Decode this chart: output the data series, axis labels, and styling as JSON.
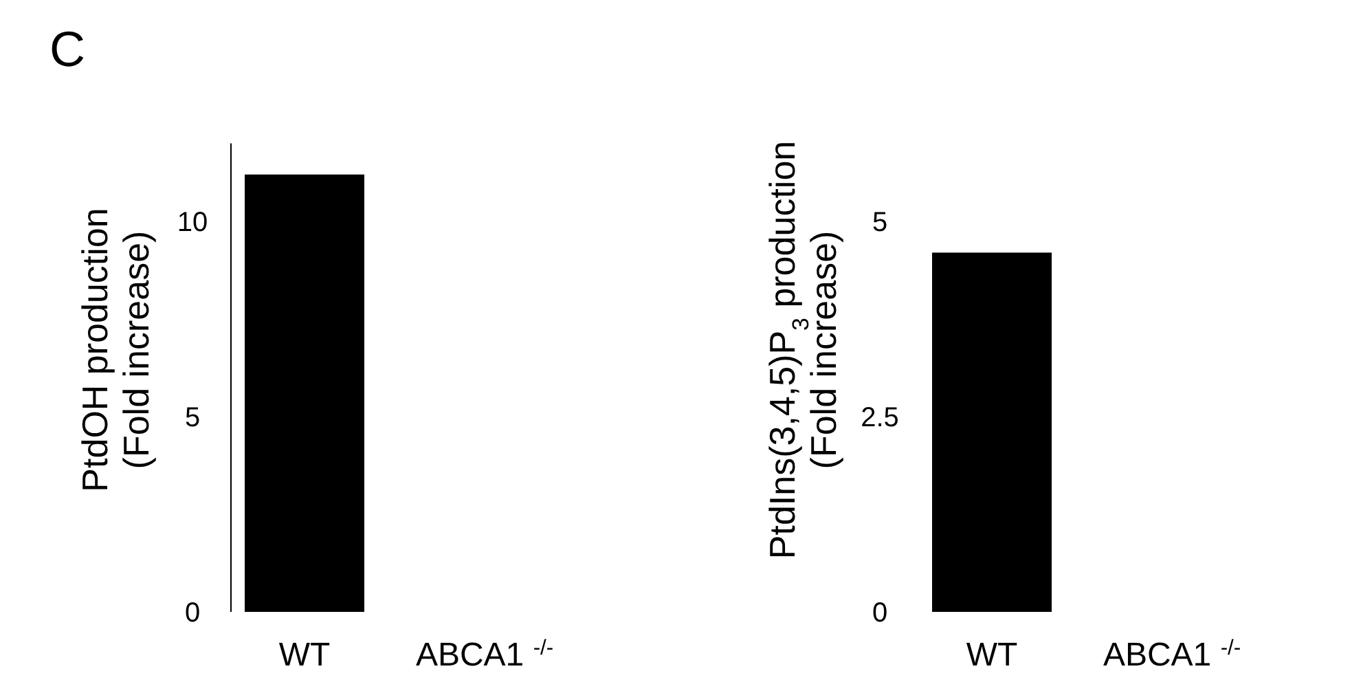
{
  "chart_data": [
    {
      "type": "bar",
      "annotations": [
        "C"
      ],
      "ylabel": "PtdOH production\n(Fold increase)",
      "categories": [
        "WT",
        "ABCA1 $^{-/-}$"
      ],
      "values": [
        11.2,
        0
      ],
      "color": "#000000",
      "ylim": [
        0,
        12
      ],
      "yticks": [
        0,
        5,
        10
      ],
      "grid": false
    },
    {
      "type": "bar",
      "ylabel": "PtdIns(3,4,5)P$_{3}$ production\n(Fold increase)",
      "categories": [
        "WT",
        "ABCA1 $^{-/-}$"
      ],
      "values": [
        4.6,
        0
      ],
      "color": "#000000",
      "ylim": [
        0,
        5
      ],
      "yticks": [
        0,
        2.5,
        5
      ],
      "grid": false
    }
  ]
}
